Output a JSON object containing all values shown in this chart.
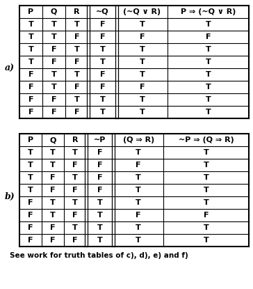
{
  "table_a": {
    "headers": [
      "P",
      "Q",
      "R",
      "~Q",
      "(~Q ∨ R)",
      "P ⇒ (~Q ∨ R)"
    ],
    "rows": [
      [
        "T",
        "T",
        "T",
        "F",
        "T",
        "T"
      ],
      [
        "T",
        "T",
        "F",
        "F",
        "F",
        "F"
      ],
      [
        "T",
        "F",
        "T",
        "T",
        "T",
        "T"
      ],
      [
        "T",
        "F",
        "F",
        "T",
        "T",
        "T"
      ],
      [
        "F",
        "T",
        "T",
        "F",
        "T",
        "T"
      ],
      [
        "F",
        "T",
        "F",
        "F",
        "F",
        "T"
      ],
      [
        "F",
        "F",
        "T",
        "T",
        "T",
        "T"
      ],
      [
        "F",
        "F",
        "F",
        "T",
        "T",
        "T"
      ]
    ]
  },
  "table_b": {
    "headers": [
      "P",
      "Q",
      "R",
      "~P",
      "(Q ⇒ R)",
      "~P ⇒ (Q ⇒ R)"
    ],
    "rows": [
      [
        "T",
        "T",
        "T",
        "F",
        "T",
        "T"
      ],
      [
        "T",
        "T",
        "F",
        "F",
        "F",
        "T"
      ],
      [
        "T",
        "F",
        "T",
        "F",
        "T",
        "T"
      ],
      [
        "T",
        "F",
        "F",
        "F",
        "T",
        "T"
      ],
      [
        "F",
        "T",
        "T",
        "T",
        "T",
        "T"
      ],
      [
        "F",
        "T",
        "F",
        "T",
        "F",
        "F"
      ],
      [
        "F",
        "F",
        "T",
        "T",
        "T",
        "T"
      ],
      [
        "F",
        "F",
        "F",
        "T",
        "T",
        "T"
      ]
    ]
  },
  "label_a": "a)",
  "label_b": "b)",
  "footer": "See work for truth tables of c), d), e) and f)",
  "bg_color": "#ffffff",
  "line_color": "#000000",
  "text_color": "#000000"
}
